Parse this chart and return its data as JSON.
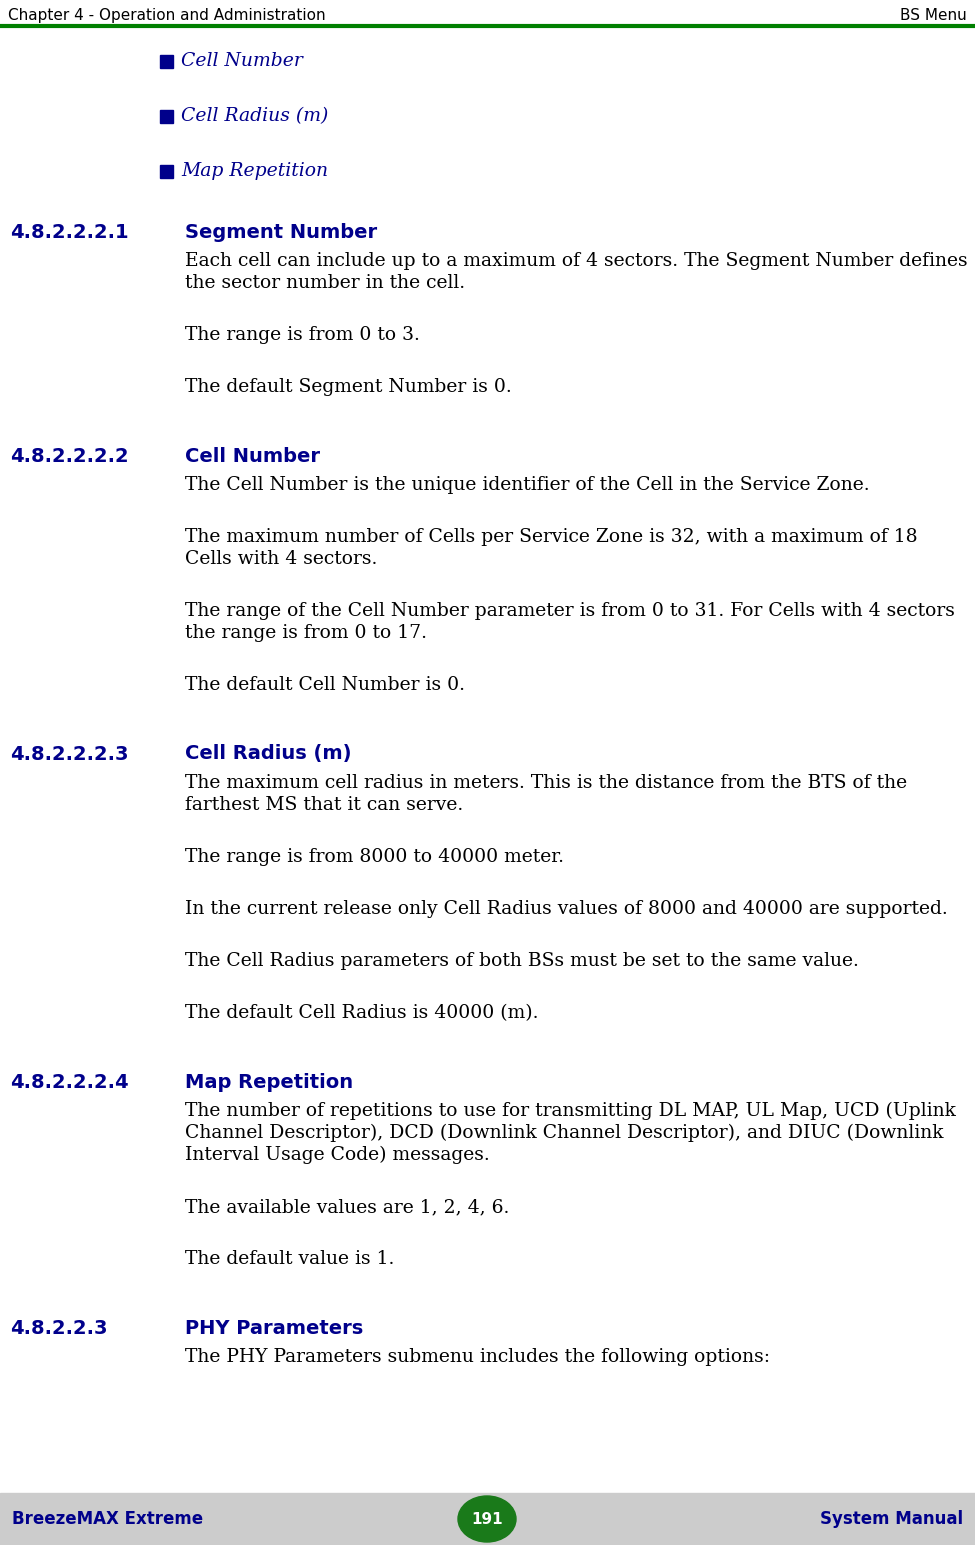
{
  "header_left": "Chapter 4 - Operation and Administration",
  "header_right": "BS Menu",
  "header_line_color": "#008000",
  "footer_left": "BreezeMAX Extreme",
  "footer_center": "191",
  "footer_right": "System Manual",
  "footer_bg": "#cccccc",
  "footer_text_color": "#00008B",
  "footer_circle_color": "#1a7a1a",
  "bullet_color": "#00008B",
  "bullet_text_color": "#00008B",
  "section_color": "#00008B",
  "body_color": "#000000",
  "bg_color": "#ffffff",
  "bullets": [
    "Cell Number",
    "Cell Radius (m)",
    "Map Repetition"
  ],
  "sections": [
    {
      "number": "4.8.2.2.2.1",
      "title": "Segment Number",
      "paragraphs": [
        "Each cell can include up to a maximum of 4 sectors. The Segment Number defines\nthe sector number in the cell.",
        "The range is from 0 to 3.",
        "The default Segment Number is 0."
      ]
    },
    {
      "number": "4.8.2.2.2.2",
      "title": "Cell Number",
      "paragraphs": [
        "The Cell Number is the unique identifier of the Cell in the Service Zone.",
        "The maximum number of Cells per Service Zone is 32, with a maximum of 18\nCells with 4 sectors.",
        "The range of the Cell Number parameter is from 0 to 31. For Cells with 4 sectors\nthe range is from 0 to 17.",
        "The default Cell Number is 0."
      ]
    },
    {
      "number": "4.8.2.2.2.3",
      "title": "Cell Radius (m)",
      "paragraphs": [
        "The maximum cell radius in meters. This is the distance from the BTS of the\nfarthest MS that it can serve.",
        "The range is from 8000 to 40000 meter.",
        "In the current release only Cell Radius values of 8000 and 40000 are supported.",
        "The Cell Radius parameters of both BSs must be set to the same value.",
        "The default Cell Radius is 40000 (m)."
      ]
    },
    {
      "number": "4.8.2.2.2.4",
      "title": "Map Repetition",
      "paragraphs": [
        "The number of repetitions to use for transmitting DL MAP, UL Map, UCD (Uplink\nChannel Descriptor), DCD (Downlink Channel Descriptor), and DIUC (Downlink\nInterval Usage Code) messages.",
        "The available values are 1, 2, 4, 6.",
        "The default value is 1."
      ]
    },
    {
      "number": "4.8.2.2.3",
      "title": "PHY Parameters",
      "paragraphs": [
        "The PHY Parameters submenu includes the following options:"
      ]
    }
  ],
  "header_fontsize": 11,
  "bullet_fontsize": 13.5,
  "section_fontsize": 14,
  "body_fontsize": 13.5,
  "footer_fontsize": 12
}
